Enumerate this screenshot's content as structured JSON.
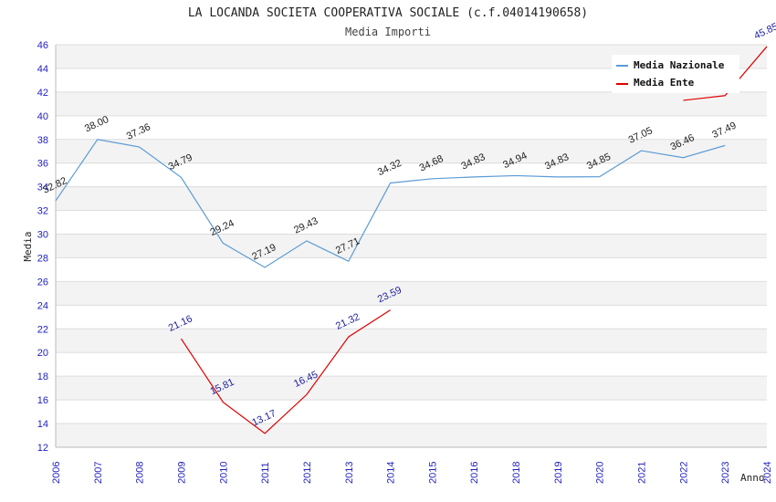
{
  "chart_data": {
    "type": "line",
    "title": "LA LOCANDA SOCIETA COOPERATIVA SOCIALE (c.f.04014190658)",
    "subtitle": "Media Importi",
    "xlabel": "Anno",
    "ylabel": "Media",
    "ylim": [
      12,
      46
    ],
    "yticks": [
      12,
      14,
      16,
      18,
      20,
      22,
      24,
      26,
      28,
      30,
      32,
      34,
      36,
      38,
      40,
      42,
      44,
      46
    ],
    "categories": [
      "2006",
      "2007",
      "2008",
      "2009",
      "2010",
      "2011",
      "2012",
      "2013",
      "2014",
      "2015",
      "2016",
      "2018",
      "2019",
      "2020",
      "2021",
      "2022",
      "2023",
      "2024"
    ],
    "grid": true,
    "legend_position": "top-right",
    "series": [
      {
        "name": "Media Nazionale",
        "color": "#5b9bd5",
        "values": [
          32.82,
          38.0,
          37.36,
          34.79,
          29.24,
          27.19,
          29.43,
          27.71,
          34.32,
          34.68,
          34.83,
          34.94,
          34.83,
          34.85,
          37.05,
          36.46,
          37.49,
          null
        ],
        "labels": [
          "32.82",
          "38.00",
          "37.36",
          "34.79",
          "29.24",
          "27.19",
          "29.43",
          "27.71",
          "34.32",
          "34.68",
          "34.83",
          "34.94",
          "34.83",
          "34.85",
          "37.05",
          "36.46",
          "37.49",
          ""
        ]
      },
      {
        "name": "Media Ente",
        "color": "#e00000",
        "values": [
          null,
          null,
          null,
          21.16,
          15.81,
          13.17,
          16.45,
          21.32,
          23.59,
          null,
          null,
          null,
          null,
          null,
          null,
          41.3,
          41.7,
          45.85
        ],
        "labels": [
          "",
          "",
          "",
          "21.16",
          "15.81",
          "13.17",
          "16.45",
          "21.32",
          "23.59",
          "",
          "",
          "",
          "",
          "",
          "",
          "",
          "",
          "45.85"
        ]
      }
    ]
  }
}
